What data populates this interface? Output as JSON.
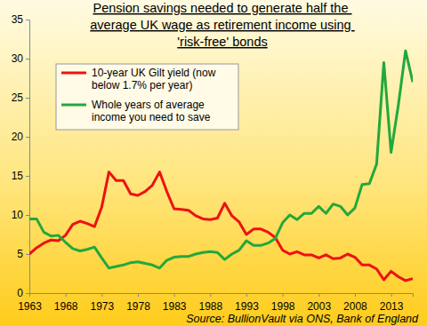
{
  "chart_data": {
    "type": "line",
    "title": "Pension savings needed to generate half the average UK wage as retirement income using 'risk-free' bonds",
    "source": "Source: BullionVault via ONS, Bank of England",
    "x": [
      1963,
      1964,
      1965,
      1966,
      1967,
      1968,
      1969,
      1970,
      1971,
      1972,
      1973,
      1974,
      1975,
      1976,
      1977,
      1978,
      1979,
      1980,
      1981,
      1982,
      1983,
      1984,
      1985,
      1986,
      1987,
      1988,
      1989,
      1990,
      1991,
      1992,
      1993,
      1994,
      1995,
      1996,
      1997,
      1998,
      1999,
      2000,
      2001,
      2002,
      2003,
      2004,
      2005,
      2006,
      2007,
      2008,
      2009,
      2010,
      2011,
      2012,
      2013,
      2014,
      2015,
      2016
    ],
    "series": [
      {
        "name": "10-year UK Gilt yield (now below 1.7% per year)",
        "color": "#ee1111",
        "values": [
          5.0,
          5.8,
          6.4,
          6.8,
          6.7,
          7.4,
          8.8,
          9.2,
          8.9,
          8.5,
          11.0,
          15.5,
          14.4,
          14.4,
          12.7,
          12.5,
          13.0,
          13.8,
          15.5,
          13.0,
          10.8,
          10.7,
          10.6,
          9.9,
          9.5,
          9.4,
          9.6,
          11.5,
          9.9,
          9.1,
          7.5,
          8.2,
          8.2,
          7.8,
          7.1,
          5.5,
          5.0,
          5.3,
          4.9,
          4.9,
          4.5,
          4.9,
          4.4,
          4.5,
          5.0,
          4.6,
          3.6,
          3.6,
          3.1,
          1.7,
          2.8,
          2.1,
          1.6,
          1.85
        ]
      },
      {
        "name": "Whole years of average income you need to save",
        "color": "#22a83c",
        "values": [
          9.5,
          9.5,
          7.8,
          7.3,
          7.4,
          6.5,
          5.7,
          5.4,
          5.6,
          5.9,
          4.5,
          3.2,
          3.4,
          3.6,
          3.9,
          4.0,
          3.8,
          3.6,
          3.2,
          4.2,
          4.6,
          4.7,
          4.7,
          5.0,
          5.2,
          5.3,
          5.2,
          4.3,
          5.0,
          5.5,
          6.7,
          6.1,
          6.1,
          6.4,
          7.0,
          9.0,
          10.0,
          9.4,
          10.2,
          10.2,
          11.1,
          10.2,
          11.4,
          11.1,
          10.0,
          10.9,
          13.9,
          14.0,
          16.5,
          29.5,
          18.0,
          24.0,
          31.0,
          27.0
        ]
      }
    ],
    "xlim": [
      1963,
      2016
    ],
    "xticks": [
      1963,
      1968,
      1973,
      1978,
      1983,
      1988,
      1993,
      1998,
      2003,
      2008,
      2013
    ],
    "ylim": [
      0,
      35
    ],
    "yticks": [
      0,
      5,
      10,
      15,
      20,
      25,
      30,
      35
    ],
    "grid": false,
    "legend": "upper left"
  }
}
